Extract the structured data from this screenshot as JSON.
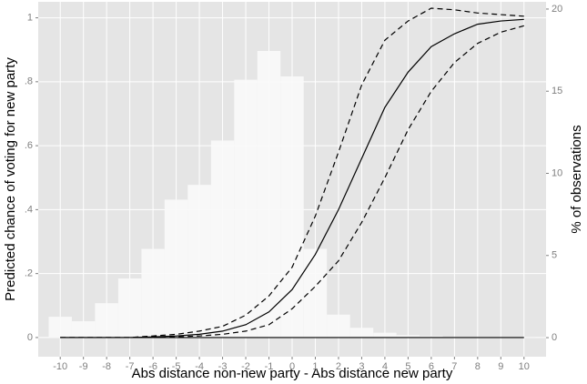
{
  "chart_data": {
    "type": "combo",
    "x_label": "Abs distance non-new party - Abs distance new party",
    "y_label": "Predicted chance of voting for new party",
    "y2_label": "% of observations",
    "x": [
      -10,
      -9,
      -8,
      -7,
      -6,
      -5,
      -4,
      -3,
      -2,
      -1,
      0,
      1,
      2,
      3,
      4,
      5,
      6,
      7,
      8,
      9,
      10
    ],
    "xlim": [
      -10.95,
      10.95
    ],
    "xticks": [
      -10,
      -9,
      -8,
      -7,
      -6,
      -5,
      -4,
      -3,
      -2,
      -1,
      0,
      1,
      2,
      3,
      4,
      5,
      6,
      7,
      8,
      9,
      10
    ],
    "ylim": [
      -0.06,
      1.05
    ],
    "yticks": [
      0,
      {
        "value": 0.2,
        "label": ".2"
      },
      {
        "value": 0.4,
        "label": ".4"
      },
      {
        "value": 0.6,
        "label": ".6"
      },
      {
        "value": 0.8,
        "label": ".8"
      },
      1
    ],
    "y2lim": [
      -1.16,
      20.44
    ],
    "y2ticks": [
      0,
      5,
      10,
      15,
      20
    ],
    "grid": true,
    "hline": 0,
    "series": [
      {
        "kind": "bar",
        "axis": "y2",
        "color": "#fafafa",
        "values": [
          1.27,
          1.0,
          2.1,
          3.6,
          5.4,
          8.4,
          9.3,
          12.0,
          15.7,
          17.45,
          15.9,
          5.4,
          1.4,
          0.6,
          0.3,
          0.15,
          0.1,
          0.05,
          0.05,
          0.02,
          0.02
        ]
      },
      {
        "kind": "line",
        "dashed": false,
        "color": "#000000",
        "values": [
          0,
          0,
          0,
          0,
          0.002,
          0.005,
          0.01,
          0.02,
          0.04,
          0.08,
          0.15,
          0.26,
          0.4,
          0.56,
          0.72,
          0.83,
          0.91,
          0.95,
          0.98,
          0.99,
          0.995
        ]
      },
      {
        "kind": "line",
        "dashed": true,
        "color": "#000000",
        "values": [
          0,
          0,
          0,
          0,
          0.005,
          0.01,
          0.02,
          0.035,
          0.07,
          0.13,
          0.22,
          0.38,
          0.58,
          0.79,
          0.93,
          0.99,
          1.03,
          1.025,
          1.015,
          1.01,
          1.005
        ]
      },
      {
        "kind": "line",
        "dashed": true,
        "color": "#000000",
        "values": [
          0,
          0,
          0,
          0,
          0,
          0.002,
          0.005,
          0.01,
          0.02,
          0.04,
          0.09,
          0.16,
          0.24,
          0.36,
          0.5,
          0.65,
          0.77,
          0.86,
          0.92,
          0.955,
          0.975
        ]
      }
    ]
  }
}
